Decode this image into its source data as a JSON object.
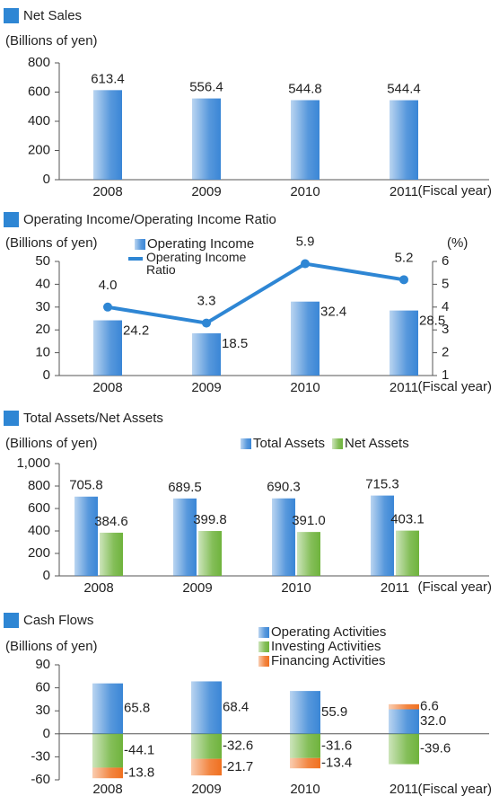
{
  "chart_data": [
    {
      "type": "bar",
      "title": "Net Sales",
      "ylabel": "(Billions of yen)",
      "xlabel": "(Fiscal year)",
      "categories": [
        "2008",
        "2009",
        "2010",
        "2011"
      ],
      "values": [
        613.4,
        556.4,
        544.8,
        544.4
      ],
      "value_labels": [
        "613.4",
        "556.4",
        "544.8",
        "544.4"
      ],
      "color": "#3a86d6",
      "ylim": [
        0,
        800
      ],
      "yticks": [
        0,
        200,
        400,
        600,
        800
      ]
    },
    {
      "type": "combo",
      "title": "Operating Income/Operating Income Ratio",
      "ylabel": "(Billions of yen)",
      "y2label": "(%)",
      "xlabel": "(Fiscal year)",
      "categories": [
        "2008",
        "2009",
        "2010",
        "2011"
      ],
      "series": [
        {
          "name": "Operating Income",
          "color": "#3a86d6",
          "values": [
            24.2,
            18.5,
            32.4,
            28.5
          ],
          "value_labels": [
            "24.2",
            "18.5",
            "32.4",
            "28.5"
          ]
        },
        {
          "name": "Operating Income Ratio",
          "color": "#2e86d4",
          "axis": "y2",
          "values": [
            4.0,
            3.3,
            5.9,
            5.2
          ],
          "value_labels": [
            "4.0",
            "3.3",
            "5.9",
            "5.2"
          ]
        }
      ],
      "ylim": [
        0,
        50
      ],
      "yticks": [
        0,
        10,
        20,
        30,
        40,
        50
      ],
      "y2lim": [
        1,
        6
      ],
      "y2ticks": [
        1,
        2,
        3,
        4,
        5,
        6
      ]
    },
    {
      "type": "bar",
      "title": "Total Assets/Net Assets",
      "ylabel": "(Billions of yen)",
      "xlabel": "(Fiscal year)",
      "categories": [
        "2008",
        "2009",
        "2010",
        "2011"
      ],
      "series": [
        {
          "name": "Total Assets",
          "color": "#3a86d6",
          "values": [
            705.8,
            689.5,
            690.3,
            715.3
          ],
          "value_labels": [
            "705.8",
            "689.5",
            "690.3",
            "715.3"
          ]
        },
        {
          "name": "Net Assets",
          "color": "#6fb33c",
          "values": [
            384.6,
            399.8,
            391.0,
            403.1
          ],
          "value_labels": [
            "384.6",
            "399.8",
            "391.0",
            "403.1"
          ]
        }
      ],
      "ylim": [
        0,
        1000
      ],
      "yticks": [
        0,
        200,
        400,
        600,
        800,
        {
          "value": 1000,
          "label": "1,000"
        }
      ]
    },
    {
      "type": "stacked",
      "title": "Cash Flows",
      "ylabel": "(Billions of yen)",
      "xlabel": "(Fiscal year)",
      "categories": [
        "2008",
        "2009",
        "2010",
        "2011"
      ],
      "series": [
        {
          "name": "Operating Activities",
          "color": "#3a86d6",
          "values": [
            65.8,
            68.4,
            55.9,
            32.0
          ],
          "value_labels": [
            "65.8",
            "68.4",
            "55.9",
            "32.0"
          ]
        },
        {
          "name": "Investing Activities",
          "color": "#6fb33c",
          "values": [
            -44.1,
            -32.6,
            -31.6,
            -39.6
          ],
          "value_labels": [
            "-44.1",
            "-32.6",
            "-31.6",
            "-39.6"
          ]
        },
        {
          "name": "Financing Activities",
          "color": "#f07020",
          "values": [
            -13.8,
            -21.7,
            -13.4,
            6.6
          ],
          "value_labels": [
            "-13.8",
            "-21.7",
            "-13.4",
            "6.6"
          ]
        }
      ],
      "ylim": [
        -60,
        90
      ],
      "yticks": [
        -60,
        -30,
        0,
        30,
        60,
        90
      ]
    }
  ]
}
